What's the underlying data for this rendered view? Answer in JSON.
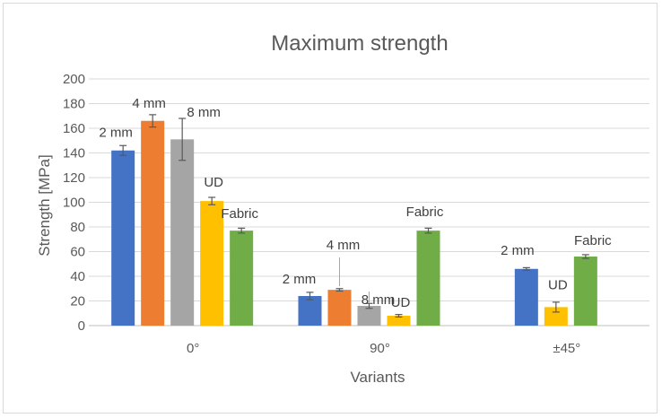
{
  "chart_data": {
    "type": "bar",
    "title": "Maximum strength",
    "xlabel": "Variants",
    "ylabel": "Strength [MPa]",
    "ylim": [
      0,
      200
    ],
    "yticks": [
      0,
      20,
      40,
      60,
      80,
      100,
      120,
      140,
      160,
      180,
      200
    ],
    "grid": true,
    "categories": [
      "0°",
      "90°",
      "±45°"
    ],
    "series": [
      {
        "name": "2 mm",
        "color": "#4472c4",
        "values": [
          142,
          24,
          46
        ],
        "errors": [
          4,
          3,
          1
        ],
        "labels": [
          "2 mm",
          "2 mm",
          "2 mm"
        ]
      },
      {
        "name": "4 mm",
        "color": "#ed7d31",
        "values": [
          166,
          29,
          null
        ],
        "errors": [
          5,
          1,
          null
        ],
        "labels": [
          "4 mm",
          "4 mm",
          null
        ]
      },
      {
        "name": "8 mm",
        "color": "#a5a5a5",
        "values": [
          151,
          16,
          null
        ],
        "errors": [
          17,
          2,
          null
        ],
        "labels": [
          "8 mm",
          "8 mm",
          null
        ]
      },
      {
        "name": "UD",
        "color": "#ffc000",
        "values": [
          101,
          8,
          15
        ],
        "errors": [
          3,
          1,
          4
        ],
        "labels": [
          "UD",
          "UD",
          "UD"
        ]
      },
      {
        "name": "Fabric",
        "color": "#70ad47",
        "values": [
          77,
          77,
          56
        ],
        "errors": [
          2,
          2,
          1.5
        ],
        "labels": [
          "Fabric",
          "Fabric",
          "Fabric"
        ]
      }
    ]
  }
}
